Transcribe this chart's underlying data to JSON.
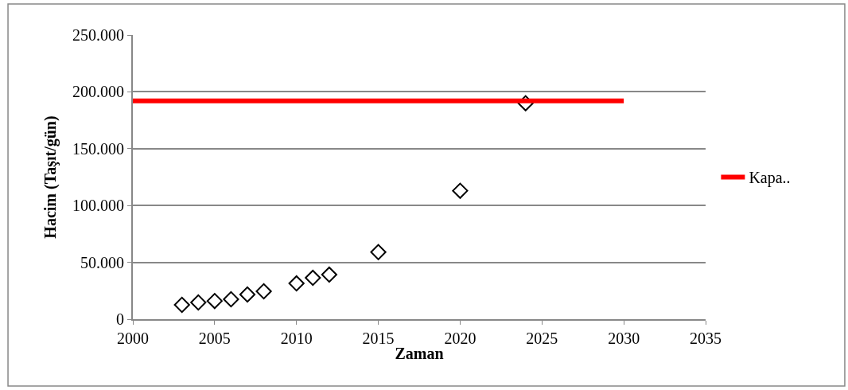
{
  "chart_data": {
    "type": "scatter",
    "xlabel": "Zaman",
    "ylabel": "Hacim (Taşıt/gün)",
    "xlim": [
      2000,
      2035
    ],
    "xticks": [
      2000,
      2005,
      2010,
      2015,
      2020,
      2025,
      2030,
      2035
    ],
    "ylim": [
      0,
      250000
    ],
    "yticks": [
      {
        "value": 0,
        "label": "0"
      },
      {
        "value": 50000,
        "label": "50.000"
      },
      {
        "value": 100000,
        "label": "100.000"
      },
      {
        "value": 150000,
        "label": "150.000"
      },
      {
        "value": 200000,
        "label": "200.000"
      },
      {
        "value": 250000,
        "label": "250.000"
      }
    ],
    "grid": "y",
    "legend": "right",
    "series": [
      {
        "color": "#000000",
        "marker": "diamond",
        "x": [
          2003,
          2004,
          2005,
          2006,
          2007,
          2008,
          2010,
          2011,
          2012,
          2015,
          2020,
          2024
        ],
        "values": [
          12600,
          14700,
          16000,
          17500,
          21700,
          24500,
          31500,
          36400,
          39200,
          59000,
          113000,
          190000
        ]
      },
      {
        "type": "line",
        "name": "Kapa..",
        "color": "#ff0000",
        "marker": "none",
        "x": [
          2000,
          2030
        ],
        "values": [
          192000,
          192000
        ]
      }
    ]
  }
}
